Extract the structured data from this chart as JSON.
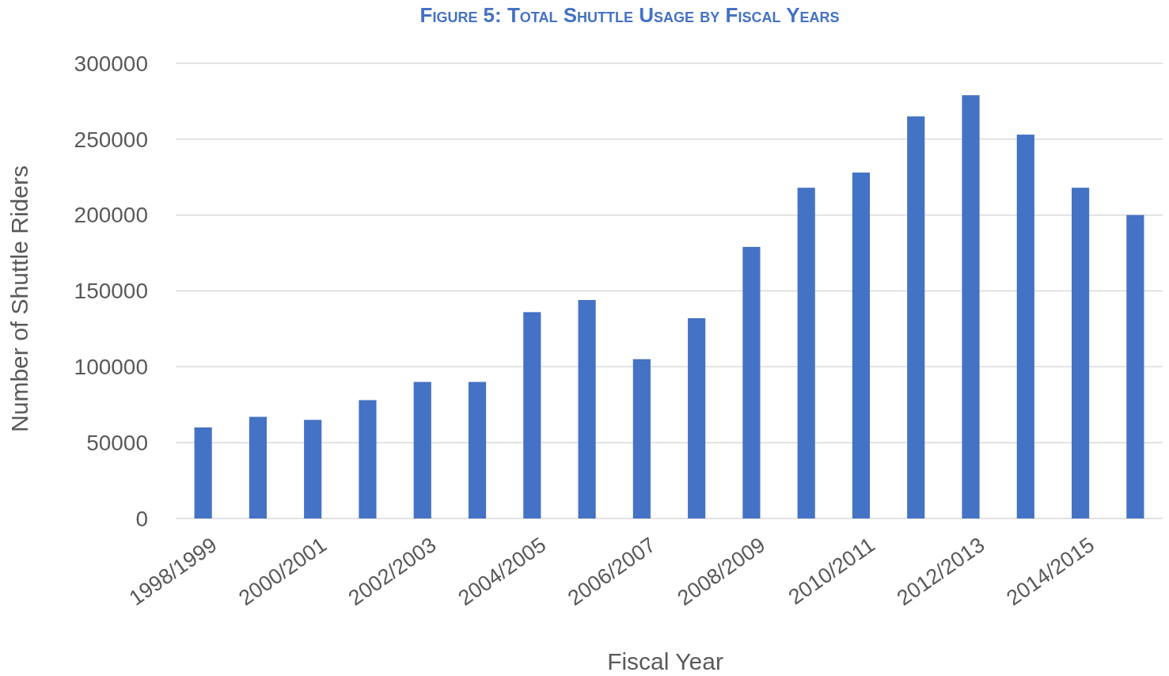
{
  "chart_data": {
    "type": "bar",
    "title": "Figure 5: Total Shuttle Usage by Fiscal Years",
    "xlabel": "Fiscal Year",
    "ylabel": "Number of Shuttle Riders",
    "categories": [
      "1998/1999",
      null,
      "2000/2001",
      null,
      "2002/2003",
      null,
      "2004/2005",
      null,
      "2006/2007",
      null,
      "2008/2009",
      null,
      "2010/2011",
      null,
      "2012/2013",
      null,
      "2014/2015",
      null
    ],
    "values": [
      60000,
      67000,
      65000,
      78000,
      90000,
      90000,
      136000,
      144000,
      105000,
      132000,
      179000,
      218000,
      228000,
      265000,
      279000,
      253000,
      218000,
      200000
    ],
    "color": "#4472c4",
    "ylim": [
      0,
      300000
    ],
    "yticks": [
      0,
      50000,
      100000,
      150000,
      200000,
      250000,
      300000
    ],
    "grid": "y"
  }
}
